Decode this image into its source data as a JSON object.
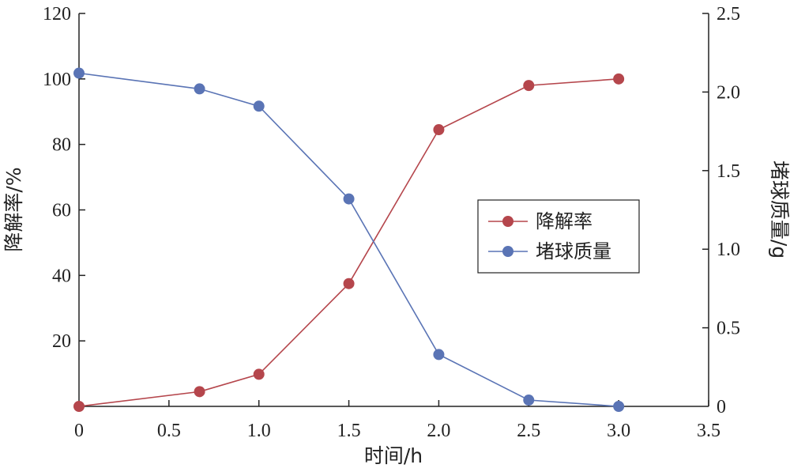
{
  "chart_data": {
    "type": "line",
    "xlabel": "时间/h",
    "ylabel": "降解率/%",
    "y2label": "堵球质量/g",
    "xlim": [
      0,
      3.5
    ],
    "ylim": [
      0,
      120
    ],
    "y2lim": [
      0,
      2.5
    ],
    "xticks": [
      "0",
      "0.5",
      "1.0",
      "1.5",
      "2.0",
      "2.5",
      "3.0",
      "3.5"
    ],
    "yticks": [
      "20",
      "40",
      "60",
      "80",
      "100",
      "120"
    ],
    "y2ticks": [
      "0",
      "0.5",
      "1.0",
      "1.5",
      "2.0",
      "2.5"
    ],
    "grid": false,
    "legend_position": "center-right",
    "series": [
      {
        "name": "降解率",
        "axis": "left",
        "color": "#b5464c",
        "x": [
          0.0,
          0.67,
          1.0,
          1.5,
          2.0,
          2.5,
          3.0
        ],
        "y": [
          0,
          4.5,
          9.8,
          37.5,
          84.5,
          98,
          100
        ]
      },
      {
        "name": "堵球质量",
        "axis": "right",
        "color": "#5a74b5",
        "x": [
          0.0,
          0.67,
          1.0,
          1.5,
          2.0,
          2.5,
          3.0
        ],
        "y": [
          2.12,
          2.02,
          1.91,
          1.32,
          0.33,
          0.04,
          0.0
        ]
      }
    ]
  }
}
